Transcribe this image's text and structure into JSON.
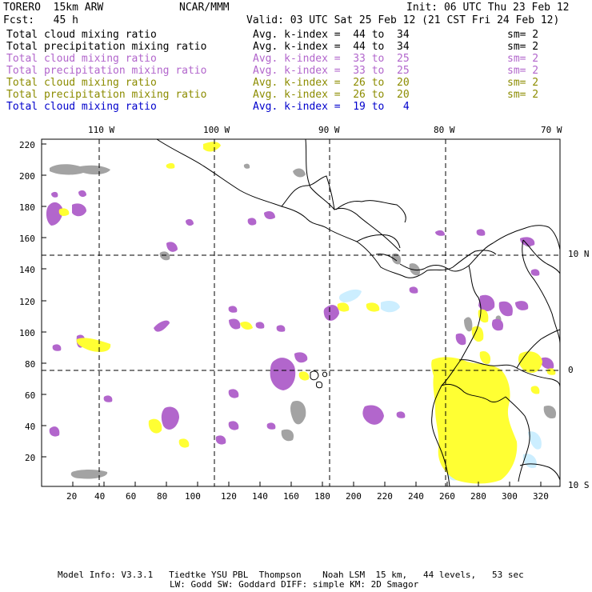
{
  "header": {
    "model": "TORERO  15km ARW",
    "org": "NCAR/MMM",
    "init": "Init: 06 UTC Thu 23 Feb 12",
    "fcst": "Fcst:   45 h",
    "valid": "Valid: 03 UTC Sat 25 Feb 12 (21 CST Fri 24 Feb 12)"
  },
  "legend": [
    {
      "field": "Total cloud mixing ratio",
      "index": "Avg. k-index =  44 to  34",
      "sm": "sm= 2",
      "color": "#000000"
    },
    {
      "field": "Total precipitation mixing ratio",
      "index": "Avg. k-index =  44 to  34",
      "sm": "sm= 2",
      "color": "#000000"
    },
    {
      "field": "Total cloud mixing ratio",
      "index": "Avg. k-index =  33 to  25",
      "sm": "sm= 2",
      "color": "#b266cc"
    },
    {
      "field": "Total precipitation mixing ratio",
      "index": "Avg. k-index =  33 to  25",
      "sm": "sm= 2",
      "color": "#b266cc"
    },
    {
      "field": "Total cloud mixing ratio",
      "index": "Avg. k-index =  26 to  20",
      "sm": "sm= 2",
      "color": "#8c8c00"
    },
    {
      "field": "Total precipitation mixing ratio",
      "index": "Avg. k-index =  26 to  20",
      "sm": "sm= 2",
      "color": "#8c8c00"
    },
    {
      "field": "Total cloud mixing ratio",
      "index": "Avg. k-index =  19 to   4",
      "sm": "",
      "color": "#0000cc"
    }
  ],
  "map": {
    "lon_labels": [
      "110 W",
      "100 W",
      "90 W",
      "80 W",
      "70 W"
    ],
    "lat_labels": [
      "10 N",
      "0",
      "10 S"
    ],
    "x_ticks": [
      "20",
      "40",
      "60",
      "80",
      "100",
      "120",
      "140",
      "160",
      "180",
      "200",
      "220",
      "240",
      "260",
      "280",
      "300",
      "320"
    ],
    "y_ticks": [
      "220",
      "200",
      "180",
      "160",
      "140",
      "120",
      "100",
      "80",
      "60",
      "40",
      "20"
    ],
    "colors": {
      "gray": "#a3a3a3",
      "purple": "#b266cc",
      "yellow": "#ffff33",
      "cyan": "#cceeff"
    }
  },
  "footer": {
    "line1": "Model Info: V3.3.1   Tiedtke YSU PBL  Thompson    Noah LSM  15 km,   44 levels,   53 sec",
    "line2": "LW: Godd SW: Goddard DIFF: simple KM: 2D Smagor"
  }
}
